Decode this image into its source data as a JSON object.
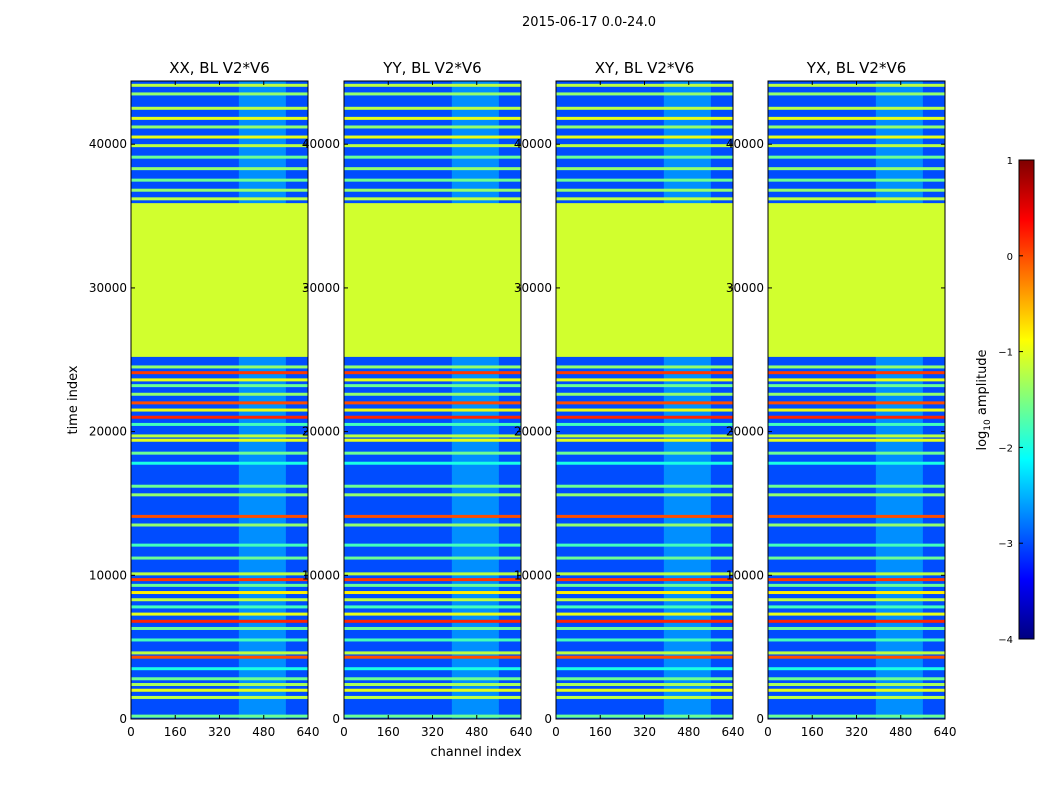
{
  "chart_data": {
    "type": "heatmap",
    "title": "2015-06-17 0.0-24.0",
    "xlabel": "channel index",
    "ylabel": "time index",
    "xlim": [
      0,
      640
    ],
    "ylim": [
      0,
      44400
    ],
    "x_ticks": [
      0,
      160,
      320,
      480,
      640
    ],
    "x_tick_labels": [
      "0",
      "160",
      "320",
      "480",
      "640"
    ],
    "y_ticks": [
      0,
      10000,
      20000,
      30000,
      40000
    ],
    "y_tick_labels": [
      "0",
      "10000",
      "20000",
      "30000",
      "40000"
    ],
    "colorbar": {
      "label_main": "log",
      "label_sub": "10",
      "label_rest": " amplitude",
      "range": [
        -4,
        1
      ],
      "ticks": [
        1,
        0,
        -1,
        -2,
        -3,
        -4
      ],
      "tick_labels": [
        "1",
        "0",
        "−1",
        "−2",
        "−3",
        "−4"
      ],
      "colormap": "jet",
      "colors": [
        "#00007f",
        "#0000ff",
        "#007fff",
        "#00ffff",
        "#7fff7f",
        "#ffff00",
        "#ff7f00",
        "#ff0000",
        "#7f0000"
      ]
    },
    "panels": [
      {
        "title": "XX, BL V2*V6"
      },
      {
        "title": "YY, BL V2*V6"
      },
      {
        "title": "XY, BL V2*V6"
      },
      {
        "title": "YX, BL V2*V6"
      }
    ],
    "background_level": -3.0,
    "flagged_time_range": [
      25200,
      35900
    ],
    "flagged_level": -1.1,
    "rfi_channel_range": [
      390,
      560
    ],
    "rfi_channel_level": -2.4,
    "rfi_time_range": [
      0,
      44400
    ],
    "bright_time_rows": [
      {
        "t": 200,
        "level": -1.6
      },
      {
        "t": 1500,
        "level": -1.2
      },
      {
        "t": 2000,
        "level": -1.0
      },
      {
        "t": 2400,
        "level": -1.3
      },
      {
        "t": 2800,
        "level": -1.6
      },
      {
        "t": 3500,
        "level": -2.0
      },
      {
        "t": 4300,
        "level": 0.0
      },
      {
        "t": 4600,
        "level": -1.2
      },
      {
        "t": 5500,
        "level": -1.8
      },
      {
        "t": 6300,
        "level": -1.6
      },
      {
        "t": 6800,
        "level": 0.2
      },
      {
        "t": 7300,
        "level": -1.0
      },
      {
        "t": 7800,
        "level": -1.8
      },
      {
        "t": 8300,
        "level": -1.2
      },
      {
        "t": 8800,
        "level": -0.8
      },
      {
        "t": 9300,
        "level": -1.6
      },
      {
        "t": 9700,
        "level": 0.1
      },
      {
        "t": 10100,
        "level": -1.2
      },
      {
        "t": 11200,
        "level": -1.6
      },
      {
        "t": 12100,
        "level": -1.8
      },
      {
        "t": 13500,
        "level": -1.4
      },
      {
        "t": 14100,
        "level": 0.0
      },
      {
        "t": 15600,
        "level": -1.4
      },
      {
        "t": 16200,
        "level": -1.6
      },
      {
        "t": 17800,
        "level": -2.0
      },
      {
        "t": 18500,
        "level": -1.6
      },
      {
        "t": 19400,
        "level": -1.0
      },
      {
        "t": 19700,
        "level": -1.2
      },
      {
        "t": 20500,
        "level": -1.8
      },
      {
        "t": 21000,
        "level": 0.2
      },
      {
        "t": 21500,
        "level": -1.0
      },
      {
        "t": 22000,
        "level": 0.0
      },
      {
        "t": 22600,
        "level": -1.4
      },
      {
        "t": 23200,
        "level": -1.6
      },
      {
        "t": 23600,
        "level": -1.0
      },
      {
        "t": 24100,
        "level": 0.1
      },
      {
        "t": 24500,
        "level": -1.4
      },
      {
        "t": 36200,
        "level": -1.2
      },
      {
        "t": 36800,
        "level": -1.4
      },
      {
        "t": 37500,
        "level": -1.6
      },
      {
        "t": 38300,
        "level": -1.4
      },
      {
        "t": 39100,
        "level": -1.6
      },
      {
        "t": 39900,
        "level": -1.2
      },
      {
        "t": 40500,
        "level": -1.0
      },
      {
        "t": 41200,
        "level": -1.4
      },
      {
        "t": 41800,
        "level": -1.0
      },
      {
        "t": 42500,
        "level": -1.2
      },
      {
        "t": 43500,
        "level": -1.4
      },
      {
        "t": 44100,
        "level": -1.2
      }
    ]
  }
}
